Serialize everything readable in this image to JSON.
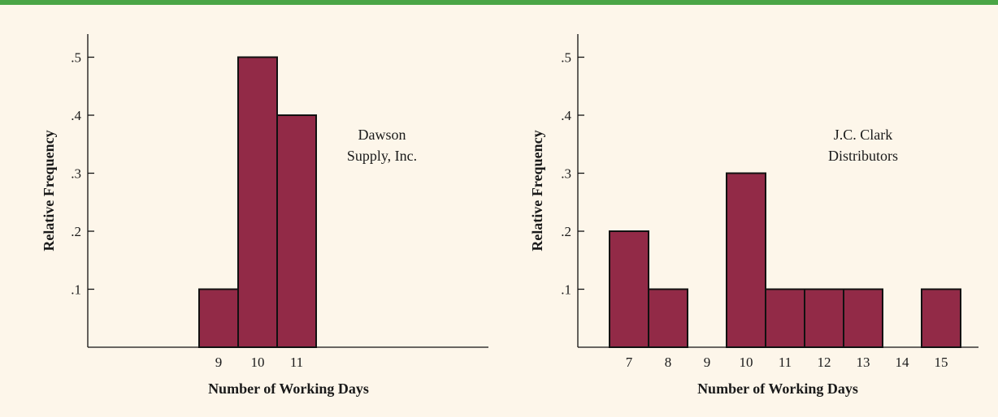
{
  "colors": {
    "bar": "#922a47",
    "bar_stroke": "#111111",
    "background": "#fdf6ea",
    "top_rule": "#4aa546"
  },
  "chart_data": [
    {
      "type": "bar",
      "title": "",
      "annotation": [
        "Dawson",
        "Supply, Inc."
      ],
      "xlabel": "Number of Working Days",
      "ylabel": "Relative Frequency",
      "x_ticks": [
        "9",
        "10",
        "11"
      ],
      "y_ticks": [
        ".1",
        ".2",
        ".3",
        ".4",
        ".5"
      ],
      "ylim": [
        0,
        0.54
      ],
      "categories": [
        9,
        10,
        11
      ],
      "values": [
        0.1,
        0.5,
        0.4
      ],
      "grid": false
    },
    {
      "type": "bar",
      "title": "",
      "annotation": [
        "J.C. Clark",
        "Distributors"
      ],
      "xlabel": "Number of Working Days",
      "ylabel": "Relative Frequency",
      "x_ticks": [
        "7",
        "8",
        "9",
        "10",
        "11",
        "12",
        "13",
        "14",
        "15"
      ],
      "y_ticks": [
        ".1",
        ".2",
        ".3",
        ".4",
        ".5"
      ],
      "ylim": [
        0,
        0.54
      ],
      "categories": [
        7,
        8,
        9,
        10,
        11,
        12,
        13,
        14,
        15
      ],
      "values": [
        0.2,
        0.1,
        0,
        0.3,
        0.1,
        0.1,
        0.1,
        0,
        0.1
      ],
      "grid": false
    }
  ]
}
